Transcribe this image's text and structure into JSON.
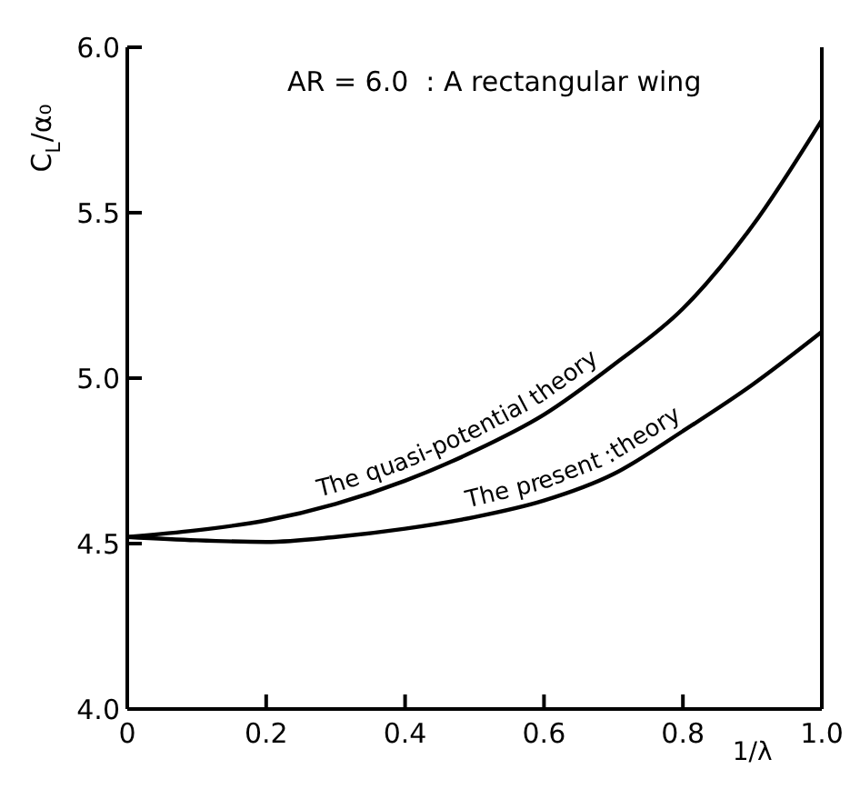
{
  "chart_data": {
    "type": "line",
    "ylabel": "C$_{L}$/α₀",
    "xlabel": "1/λ",
    "annotations": [
      "AR = 6.0  : A rectangular wing"
    ],
    "x": [
      0,
      0.1,
      0.2,
      0.3,
      0.4,
      0.5,
      0.6,
      0.7,
      0.8,
      0.9,
      1.0
    ],
    "series": [
      {
        "name": "The quasi-potential theory",
        "color": "#000000",
        "values": [
          4.52,
          4.54,
          4.57,
          4.62,
          4.69,
          4.78,
          4.89,
          5.04,
          5.21,
          5.46,
          5.78
        ]
      },
      {
        "name": "The present :theory",
        "color": "#000000",
        "values": [
          4.52,
          4.51,
          4.505,
          4.52,
          4.545,
          4.58,
          4.63,
          4.71,
          4.84,
          4.98,
          5.14
        ]
      }
    ],
    "xlim": [
      0,
      1
    ],
    "xticks": [
      0,
      0.2,
      0.4,
      0.6,
      0.8,
      {
        "value": 1,
        "label": "1.0"
      }
    ],
    "ylim": [
      4,
      6
    ],
    "yticks": [
      {
        "value": 4,
        "label": "4.0"
      },
      4.5,
      {
        "value": 5,
        "label": "5.0"
      },
      5.5,
      {
        "value": 6,
        "label": "6.0"
      }
    ],
    "grid": false,
    "legend": false
  }
}
